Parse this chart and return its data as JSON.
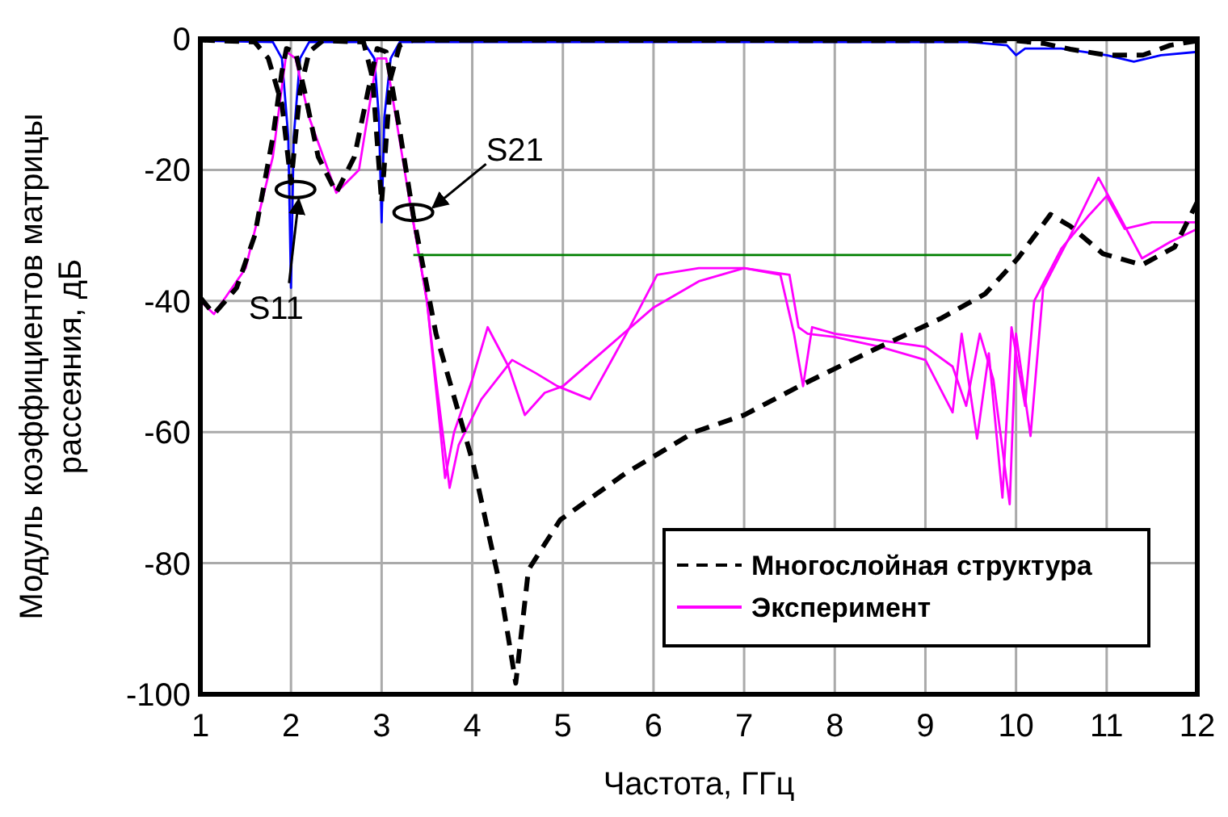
{
  "chart_data": {
    "type": "line",
    "xlabel": "Частота, ГГц",
    "ylabel": "Модуль коэффициентов матрицы рассеяния, дБ",
    "xlim": [
      1,
      12
    ],
    "ylim": [
      -100,
      0
    ],
    "xticks": [
      1,
      2,
      3,
      4,
      5,
      6,
      7,
      8,
      9,
      10,
      11,
      12
    ],
    "yticks": [
      -100,
      -80,
      -60,
      -40,
      -20,
      0
    ],
    "grid": true,
    "legend": "bottom right",
    "annotations": [
      {
        "text": "S11",
        "x": 2.05,
        "y": -23
      },
      {
        "text": "S21",
        "x": 3.35,
        "y": -26.5
      }
    ],
    "series": [
      {
        "color": "#0000ff",
        "x": [
          1,
          1.8,
          1.9,
          1.97,
          2.0,
          2.03,
          2.1,
          2.2,
          2.8,
          2.92,
          2.97,
          3.0,
          3.03,
          3.1,
          3.2,
          9.5,
          9.9,
          10.0,
          10.1,
          10.5,
          11,
          11.3,
          11.6,
          12
        ],
        "values": [
          -0.3,
          -0.5,
          -3,
          -15,
          -38,
          -15,
          -3,
          -0.5,
          -0.5,
          -3,
          -12,
          -28,
          -12,
          -3,
          -0.5,
          -0.5,
          -1,
          -2.5,
          -1.5,
          -1.5,
          -2.5,
          -3.5,
          -2.5,
          -2
        ]
      },
      {
        "color": "#ff00ff",
        "x": [
          1,
          1.15,
          1.5,
          1.8,
          1.95,
          2.05,
          2.2,
          2.5,
          2.75,
          2.95,
          3.05,
          3.3,
          3.5,
          3.65,
          3.7,
          3.8,
          4.0,
          4.17,
          4.4,
          4.58,
          4.8,
          5.0,
          5.5,
          6,
          6.5,
          7,
          7.5,
          7.6,
          7.7,
          8,
          8.5,
          9,
          9.3,
          9.4,
          9.57,
          9.7,
          9.85,
          9.95,
          10.1,
          10.2,
          10.5,
          10.8,
          11,
          11.2,
          11.5,
          12
        ],
        "values": [
          -40,
          -42,
          -35,
          -18,
          -2,
          -3,
          -12,
          -23.5,
          -20,
          -3,
          -3,
          -24,
          -40,
          -60,
          -67,
          -60,
          -52,
          -44,
          -50,
          -57.4,
          -54,
          -53,
          -47,
          -41,
          -37,
          -35,
          -36,
          -44,
          -45,
          -45.5,
          -47,
          -49,
          -57,
          -45,
          -61,
          -48,
          -70,
          -44,
          -56,
          -40,
          -32,
          -27,
          -24,
          -29,
          -28,
          -28
        ]
      },
      {
        "name": "Эксперимент",
        "color": "#ff00ff",
        "x": [
          3.3,
          3.5,
          3.6,
          3.75,
          3.85,
          4.1,
          4.44,
          4.7,
          4.94,
          5.3,
          5.7,
          6.04,
          6.5,
          7,
          7.4,
          7.55,
          7.65,
          7.75,
          8,
          8.5,
          9,
          9.3,
          9.45,
          9.6,
          9.75,
          9.93,
          10.0,
          10.16,
          10.3,
          10.6,
          10.91,
          11.1,
          11.39,
          11.7,
          12
        ],
        "values": [
          -24,
          -40,
          -52,
          -68.5,
          -62,
          -55,
          -49,
          -51,
          -53,
          -55,
          -45,
          -36,
          -35,
          -35,
          -36,
          -45,
          -53,
          -44,
          -45,
          -46,
          -47,
          -50,
          -56,
          -45,
          -52,
          -71,
          -45,
          -60.6,
          -38,
          -30,
          -21.2,
          -26,
          -33.5,
          -31,
          -29
        ]
      },
      {
        "name": "Многослойная структура",
        "color": "#000000",
        "line_style": "dashed",
        "x": [
          1,
          1.15,
          1.4,
          1.6,
          1.8,
          1.9,
          1.95,
          2.05,
          2.15,
          2.3,
          2.5,
          2.7,
          2.85,
          2.95,
          3.05,
          3.2,
          3.35,
          3.6,
          4.01,
          4.3,
          4.48,
          4.62,
          4.97,
          5.69,
          6.45,
          7.0,
          7.65,
          8.42,
          9.18,
          9.66,
          10.02,
          10.38,
          10.6,
          10.96,
          11.39,
          11.75,
          12
        ],
        "values": [
          -39.5,
          -42,
          -38,
          -30,
          -15,
          -5,
          -1.5,
          -2,
          -8,
          -18,
          -23.5,
          -18,
          -8,
          -1.5,
          -2,
          -14,
          -27,
          -45,
          -64.8,
          -83,
          -98.3,
          -81,
          -73.4,
          -66.3,
          -60,
          -57.4,
          -52.7,
          -47.5,
          -42.6,
          -38.9,
          -33.5,
          -26.8,
          -28.6,
          -32.8,
          -34.5,
          -31.8,
          -24.9
        ]
      },
      {
        "color": "#000000",
        "line_style": "dashed",
        "x": [
          1,
          1.6,
          1.75,
          1.9,
          2.0,
          2.1,
          2.2,
          2.35,
          2.8,
          2.9,
          3.0,
          3.1,
          3.2,
          3.35,
          10,
          10.3,
          10.6,
          11.0,
          11.4,
          11.7,
          12
        ],
        "values": [
          -0.2,
          -0.5,
          -3,
          -10,
          -22,
          -8,
          -2,
          -0.3,
          -0.5,
          -6,
          -25,
          -6,
          -1,
          -0.2,
          -0.3,
          -0.7,
          -1.6,
          -2.5,
          -2.5,
          -1,
          -0.3
        ]
      },
      {
        "color": "#008000",
        "x": [
          3.35,
          9.95
        ],
        "values": [
          -33,
          -33
        ]
      }
    ]
  }
}
